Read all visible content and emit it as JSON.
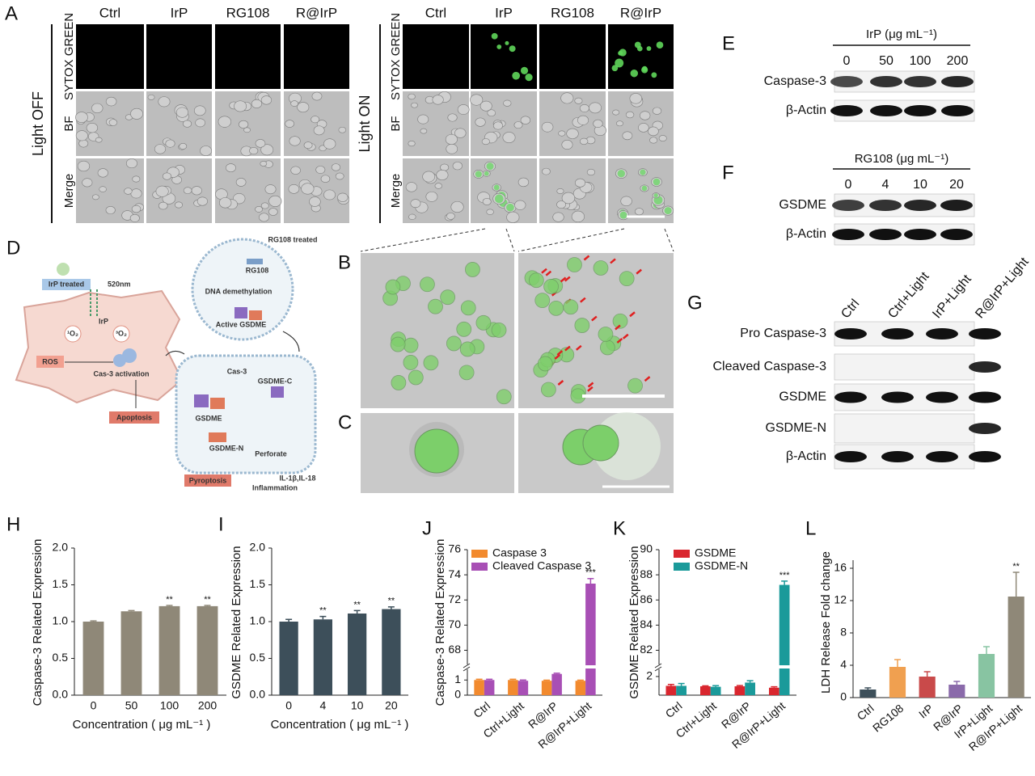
{
  "panel_a": {
    "label": "A",
    "groups": [
      {
        "title": "Light OFF",
        "columns": [
          "Ctrl",
          "IrP",
          "RG108",
          "R@IrP"
        ],
        "rows": [
          "SYTOX GREEN",
          "BF",
          "Merge"
        ]
      },
      {
        "title": "Light ON",
        "columns": [
          "Ctrl",
          "IrP",
          "RG108",
          "R@IrP"
        ],
        "rows": [
          "SYTOX GREEN",
          "BF",
          "Merge"
        ]
      }
    ]
  },
  "panel_b": {
    "label": "B"
  },
  "panel_c": {
    "label": "C"
  },
  "panel_d": {
    "label": "D",
    "rg108_treated": "RG108 treated",
    "irp_treated": "IrP treated",
    "wavelength": "520nm",
    "irp": "IrP",
    "singlet_oxygen": "¹O₂",
    "triplet_oxygen": "³O₂",
    "ros": "ROS",
    "cas3_activation": "Cas-3 activation",
    "apoptosis": "Apoptosis",
    "rg108": "RG108",
    "dna_demethylation": "DNA demethylation",
    "active_gsdme": "Active GSDME",
    "cas3": "Cas-3",
    "gsdme_c": "GSDME-C",
    "gsdme": "GSDME",
    "gsdme_n": "GSDME-N",
    "perforate": "Perforate",
    "pyroptosis": "Pyroptosis",
    "cytokines": "IL-1β,IL-18",
    "inflammation": "Inflammation"
  },
  "blots": [
    {
      "label": "E",
      "header": "IrP (μg mL⁻¹)",
      "lanes": [
        "0",
        "50",
        "100",
        "200"
      ],
      "rows": [
        "Caspase-3",
        "β-Actin"
      ]
    },
    {
      "label": "F",
      "header": "RG108 (μg mL⁻¹)",
      "lanes": [
        "0",
        "4",
        "10",
        "20"
      ],
      "rows": [
        "GSDME",
        "β-Actin"
      ]
    },
    {
      "label": "G",
      "lanes": [
        "Ctrl",
        "Ctrl+Light",
        "IrP+Light",
        "R@IrP+Light"
      ],
      "rows": [
        "Pro Caspase-3",
        "Cleaved Caspase-3",
        "GSDME",
        "GSDME-N",
        "β-Actin"
      ]
    }
  ],
  "chart_data": [
    {
      "type": "bar",
      "label": "H",
      "y_label": "Caspase-3 Related Expression",
      "x_label": "Concentration ( μg mL⁻¹ )",
      "categories": [
        "0",
        "50",
        "100",
        "200"
      ],
      "values": [
        1.0,
        1.14,
        1.21,
        1.21
      ],
      "errors": [
        0.01,
        0.01,
        0.01,
        0.01
      ],
      "significance": [
        null,
        null,
        "**",
        "**"
      ],
      "color": "#8f8878",
      "ylim": [
        0,
        2
      ],
      "yticks": [
        {
          "value": 0,
          "label": "0.0"
        },
        0.5,
        {
          "value": 1,
          "label": "1.0"
        },
        1.5,
        {
          "value": 2,
          "label": "2.0"
        }
      ]
    },
    {
      "type": "bar",
      "label": "I",
      "y_label": "GSDME Related Expression",
      "x_label": "Concentration ( μg mL⁻¹ )",
      "categories": [
        "0",
        "4",
        "10",
        "20"
      ],
      "values": [
        1.0,
        1.03,
        1.11,
        1.17
      ],
      "errors": [
        0.03,
        0.04,
        0.04,
        0.03
      ],
      "significance": [
        null,
        "**",
        "**",
        "**"
      ],
      "color": "#3d4f5a",
      "ylim": [
        0,
        2
      ],
      "yticks": [
        {
          "value": 0,
          "label": "0.0"
        },
        0.5,
        {
          "value": 1,
          "label": "1.0"
        },
        1.5,
        {
          "value": 2,
          "label": "2.0"
        }
      ]
    },
    {
      "type": "bar",
      "label": "J",
      "y_label": "Caspase-3 Related Expression",
      "categories": [
        "Ctrl",
        "Ctrl+Light",
        "R@IrP",
        "R@IrP+Light"
      ],
      "series": [
        {
          "name": "Caspase 3",
          "color": "#f28a2e",
          "values": [
            1.0,
            1.0,
            0.95,
            0.95
          ],
          "errors": [
            0.05,
            0.05,
            0.04,
            0.04
          ]
        },
        {
          "name": "Cleaved Caspase 3",
          "color": "#a84fb5",
          "values": [
            1.0,
            0.95,
            1.4,
            73.3
          ],
          "errors": [
            0.05,
            0.05,
            0.05,
            0.4
          ]
        }
      ],
      "significance": [
        null,
        null,
        null,
        "***"
      ],
      "ylim": [
        0,
        76
      ],
      "ybreak": [
        1.6,
        67
      ],
      "yticks": [
        0,
        1,
        68,
        70,
        72,
        74,
        76
      ]
    },
    {
      "type": "bar",
      "label": "K",
      "y_label": "GSDME Related Expression",
      "categories": [
        "Ctrl",
        "Ctrl+Light",
        "R@IrP",
        "R@IrP+Light"
      ],
      "series": [
        {
          "name": "GSDME",
          "color": "#d9262e",
          "values": [
            1.0,
            0.95,
            0.95,
            0.8
          ],
          "errors": [
            0.15,
            0.05,
            0.08,
            0.1
          ]
        },
        {
          "name": "GSDME-N",
          "color": "#1a9a9a",
          "values": [
            1.0,
            0.9,
            1.35,
            87.2
          ],
          "errors": [
            0.25,
            0.12,
            0.2,
            0.3
          ]
        }
      ],
      "significance": [
        null,
        null,
        null,
        "***"
      ],
      "ylim": [
        0,
        90
      ],
      "ybreak": [
        2.6,
        81
      ],
      "yticks": [
        2,
        82,
        84,
        86,
        88,
        90
      ]
    },
    {
      "type": "bar",
      "label": "L",
      "y_label": "LDH Release Fold change",
      "categories": [
        "Ctrl",
        "RG108",
        "IrP",
        "R@IrP",
        "IrP+Light",
        "R@IrP+Light"
      ],
      "values": [
        1.0,
        3.8,
        2.6,
        1.6,
        5.4,
        12.5
      ],
      "errors": [
        0.2,
        0.9,
        0.6,
        0.4,
        0.9,
        3.0
      ],
      "significance": [
        null,
        null,
        null,
        null,
        null,
        "**"
      ],
      "colors": [
        "#3d4f5a",
        "#f0a050",
        "#c94a4a",
        "#8a6aaa",
        "#88c4a2",
        "#8f8878"
      ],
      "ylim": [
        0,
        17
      ],
      "yticks": [
        0,
        4,
        8,
        12,
        16
      ]
    }
  ]
}
